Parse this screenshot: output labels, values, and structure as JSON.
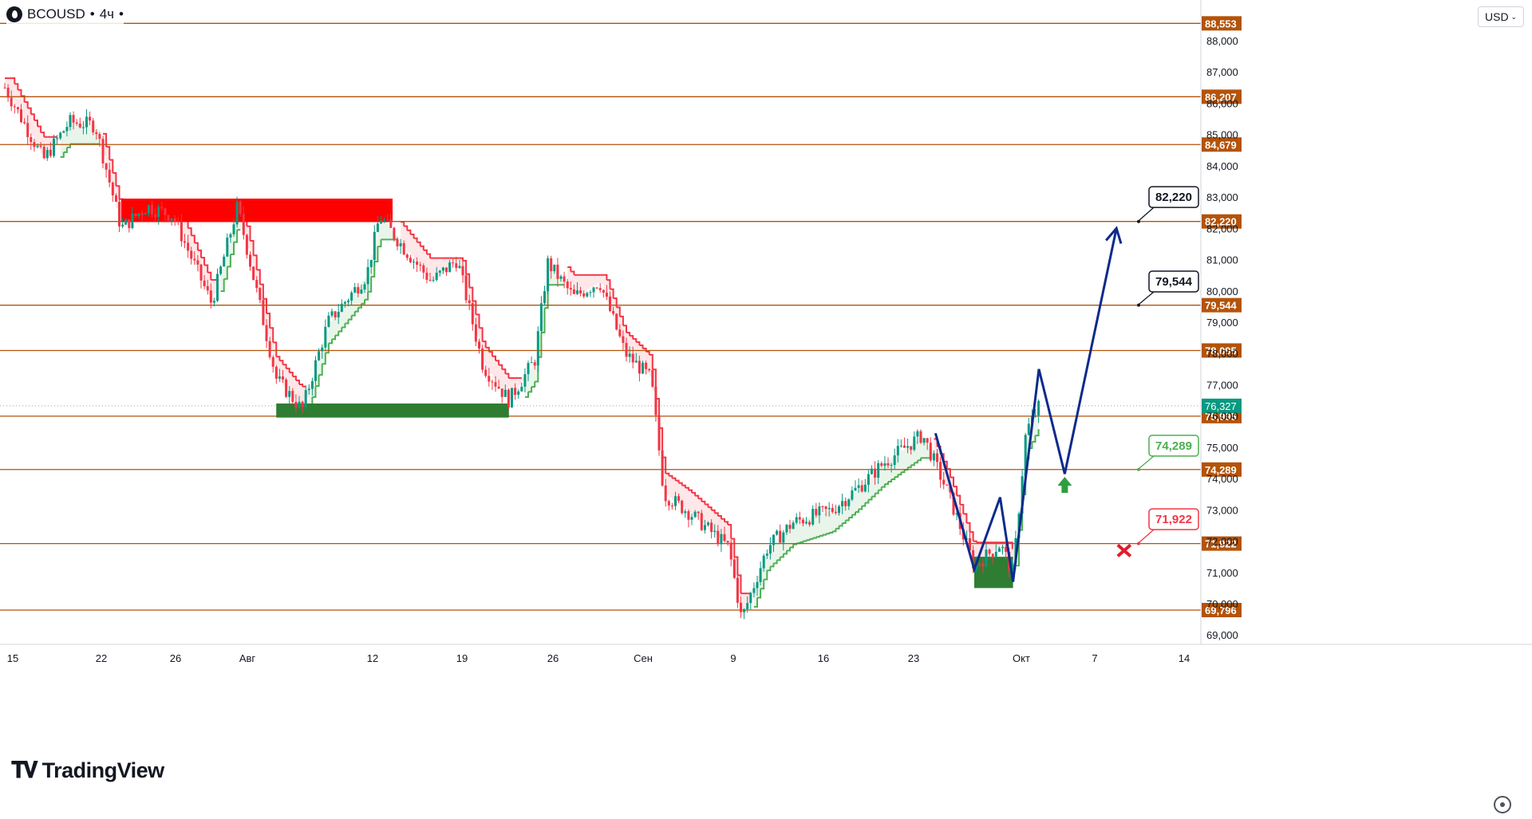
{
  "header": {
    "symbol": "BCOUSD",
    "separator": "•",
    "interval": "4ч",
    "interval_suffix": "•"
  },
  "currency": {
    "label": "USD",
    "dropdown_icon": "chevron-down-icon"
  },
  "branding": {
    "logo_text": "TradingView",
    "logo_mark": "TV"
  },
  "settings": {
    "icon": "settings-icon"
  },
  "colors": {
    "level_line": "#b45309",
    "level_label_bg": "#b45309",
    "up_candle": "#089981",
    "down_candle": "#f23645",
    "trail_bear": "#f23645",
    "trail_bull": "#4caf50",
    "resistance_zone": "#ff0000",
    "support_zone": "#2e7d32",
    "projection": "#0d2a8c",
    "current_price": "#089981"
  },
  "chart_data": {
    "type": "candlestick",
    "ylim": [
      68700,
      89300
    ],
    "y_ticks": [
      "69,000",
      "70,000",
      "71,000",
      "72,000",
      "73,000",
      "74,000",
      "75,000",
      "76,000",
      "77,000",
      "78,000",
      "79,000",
      "80,000",
      "81,000",
      "82,000",
      "83,000",
      "84,000",
      "85,000",
      "86,000",
      "87,000",
      "88,000"
    ],
    "x_ticks": [
      "15",
      "22",
      "26",
      "Авг",
      "12",
      "19",
      "26",
      "Сен",
      "9",
      "16",
      "23",
      "Окт",
      "7",
      "14"
    ],
    "levels": [
      88553,
      86207,
      84679,
      82220,
      79544,
      78095,
      75995,
      74289,
      71922,
      69796
    ],
    "level_labels": [
      "88,553",
      "86,207",
      "84,679",
      "82,220",
      "79,544",
      "78,095",
      "75,995",
      "74,289",
      "71,922",
      "69,796"
    ],
    "current_price": 76327,
    "current_price_label": "76,327",
    "zones": [
      {
        "kind": "resistance",
        "from_date": "Jul 24",
        "to_date": "Aug 14",
        "low": 82200,
        "high": 82950
      },
      {
        "kind": "support",
        "from_date": "Aug 5",
        "to_date": "Aug 23",
        "low": 75950,
        "high": 76400
      },
      {
        "kind": "support",
        "from_date": "Sep 28",
        "to_date": "Oct 1",
        "low": 70500,
        "high": 71500
      }
    ],
    "projection_path": [
      {
        "date": "Sep 25",
        "price": 75450
      },
      {
        "date": "Sep 28",
        "price": 71100
      },
      {
        "date": "Sep 30",
        "price": 73400
      },
      {
        "date": "Oct 1",
        "price": 70700
      },
      {
        "date": "Oct 3",
        "price": 77500
      },
      {
        "date": "Oct 5",
        "price": 74150
      },
      {
        "date": "Oct 9",
        "price": 82000
      }
    ],
    "callouts": [
      {
        "label": "82,220",
        "style": "target"
      },
      {
        "label": "79,544",
        "style": "target"
      },
      {
        "label": "74,289",
        "style": "entry"
      },
      {
        "label": "71,922",
        "style": "stop"
      }
    ],
    "entry_marker": {
      "price": 73850
    },
    "stop_marker": {
      "price": 71700
    }
  }
}
